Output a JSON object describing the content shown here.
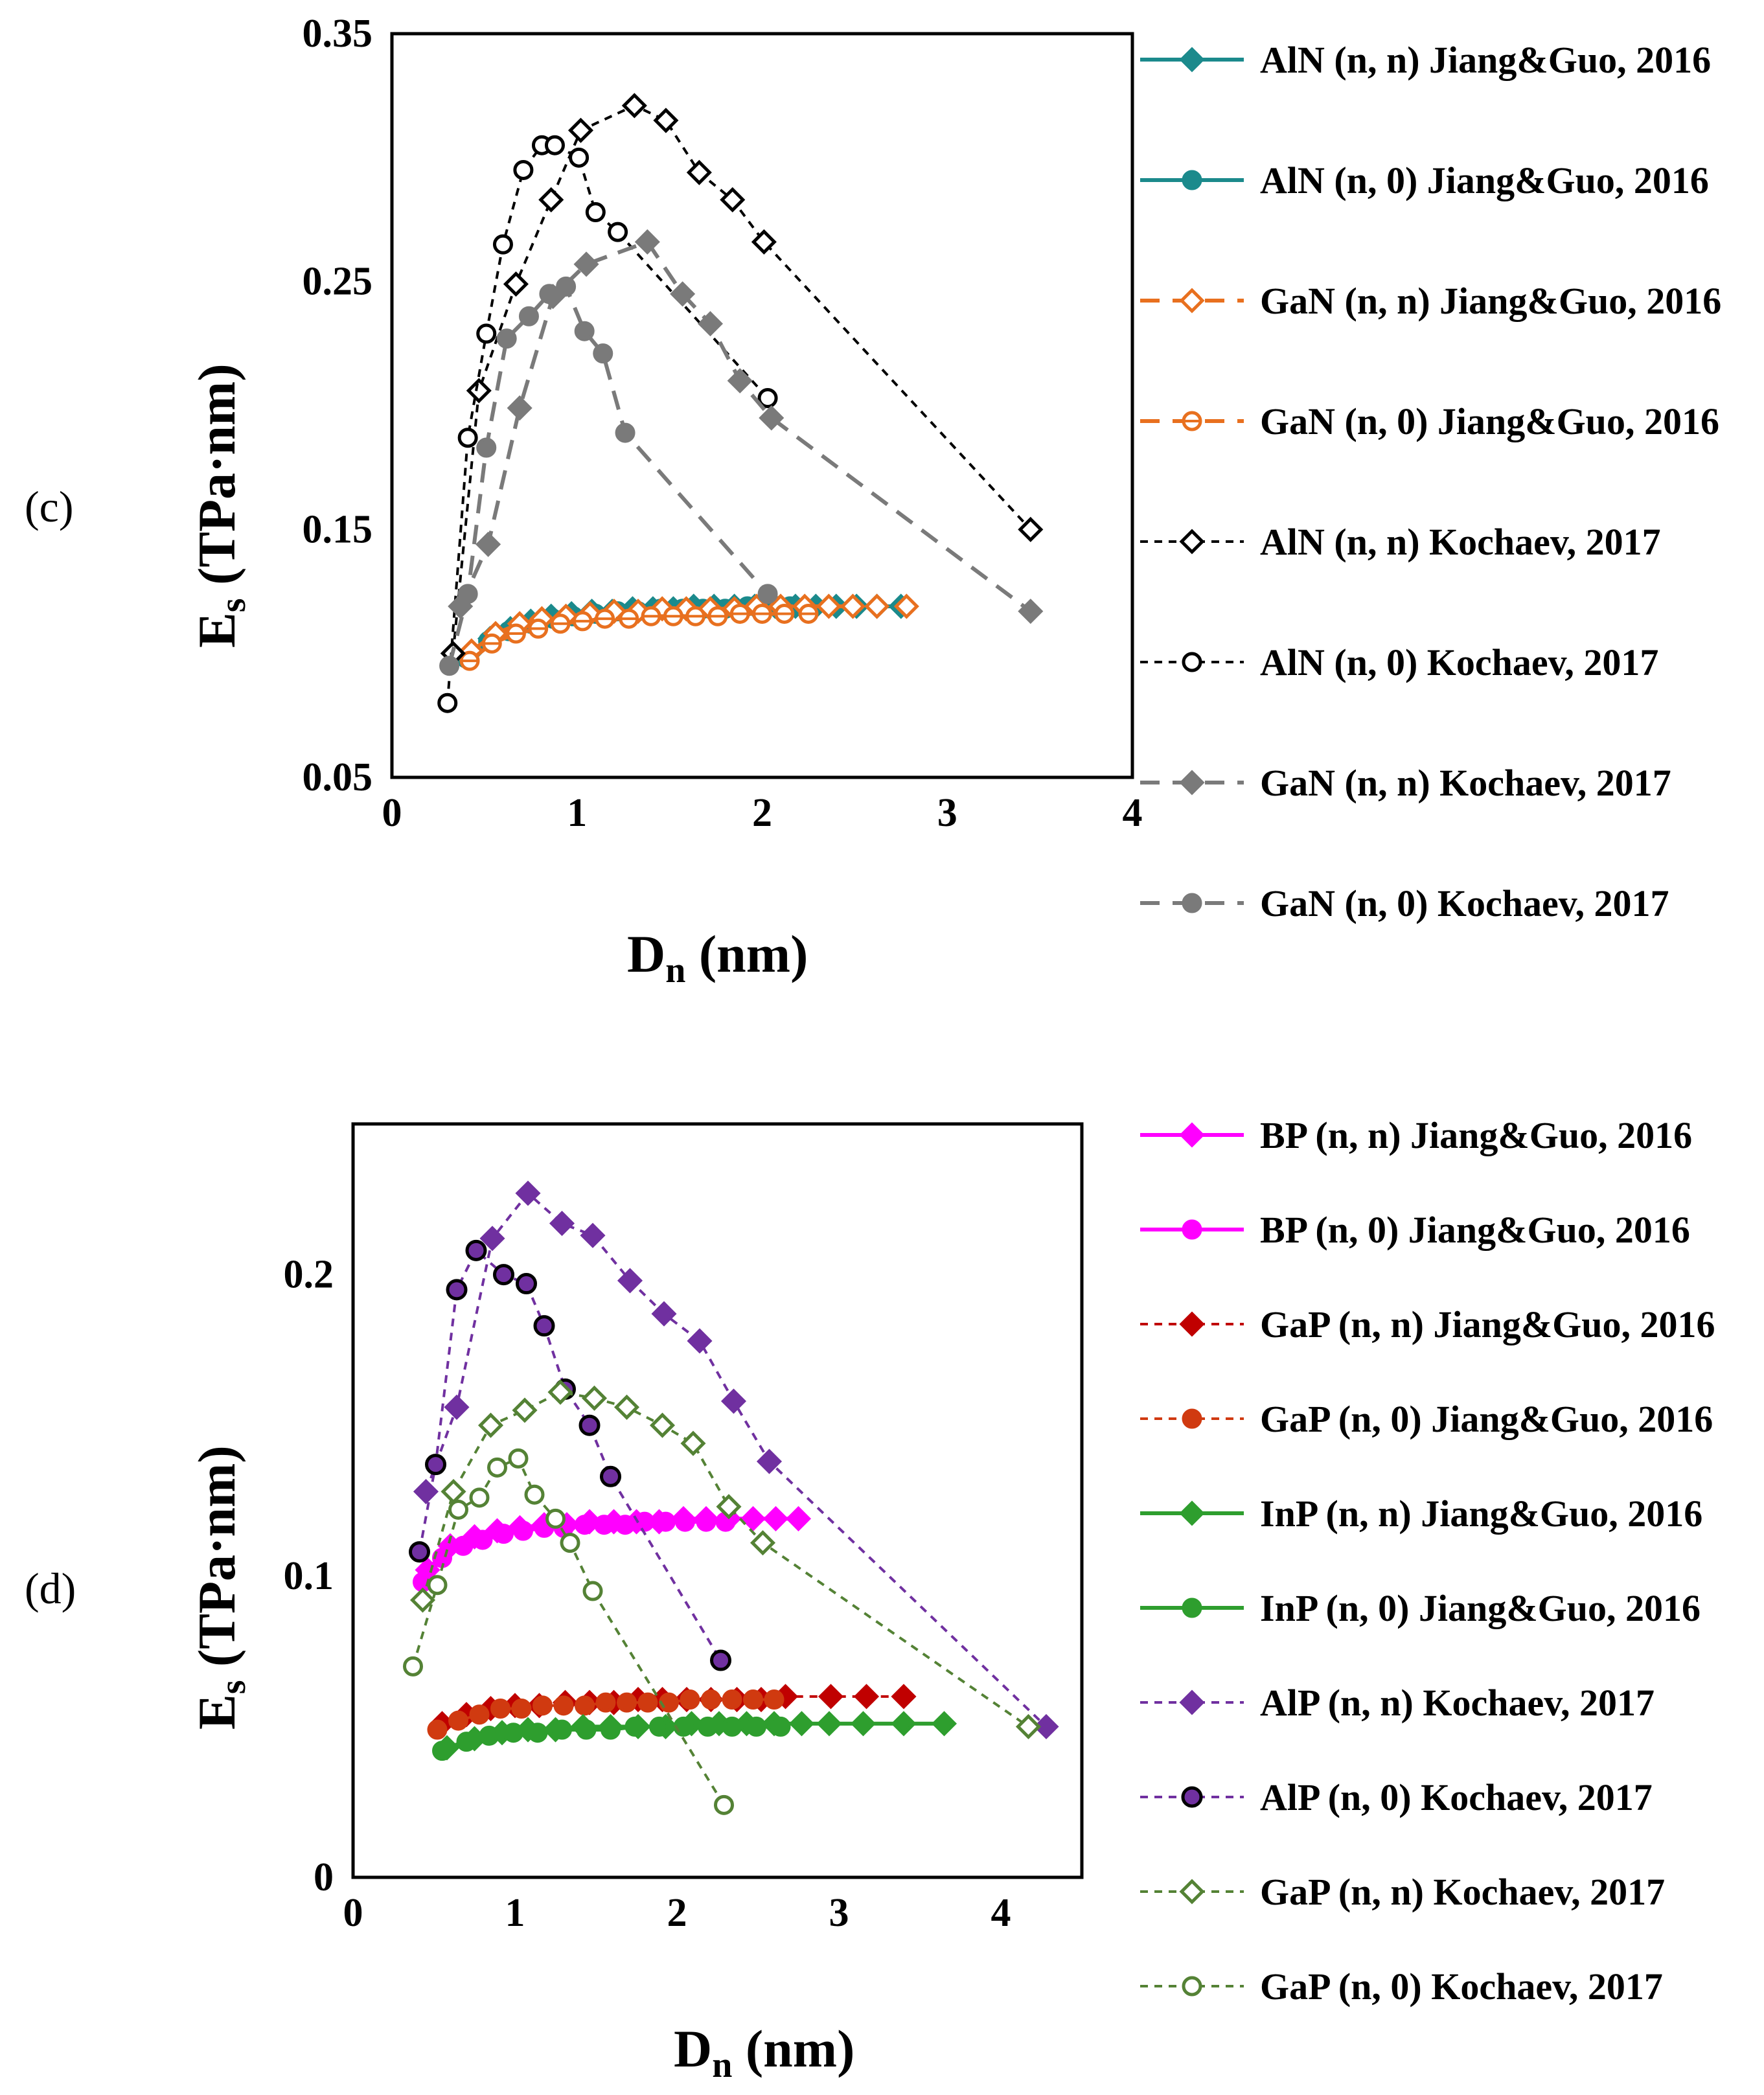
{
  "chart_data": [
    {
      "type": "scatter",
      "panel_label": "(c)",
      "xlabel_main": "D",
      "xlabel_sub": "n",
      "xlabel_unit": " (nm)",
      "ylabel_main": "E",
      "ylabel_sub": "s",
      "ylabel_unit": " (TPa·nm)",
      "xlim": [
        0,
        4
      ],
      "ylim": [
        0.05,
        0.35
      ],
      "x_ticks": [
        0,
        1,
        2,
        3,
        4
      ],
      "x_tick_labels": [
        "0",
        "1",
        "2",
        "3",
        "4"
      ],
      "y_ticks": [
        0.05,
        0.15,
        0.25,
        0.35
      ],
      "y_tick_labels": [
        "0.05",
        "0.15",
        "0.25",
        "0.35"
      ],
      "series": [
        {
          "name": "AlN (n, n) Jiang&Guo, 2016",
          "color": "#1b8a8c",
          "marker": "diamond",
          "filled": true,
          "line": "solid",
          "x": [
            0.42,
            0.53,
            0.64,
            0.75,
            0.86,
            0.97,
            1.08,
            1.19,
            1.3,
            1.41,
            1.52,
            1.63,
            1.74,
            1.85,
            1.96,
            2.07,
            2.18,
            2.29,
            2.4,
            2.51,
            2.62,
            2.75
          ],
          "y": [
            0.1,
            0.106,
            0.11,
            0.113,
            0.115,
            0.116,
            0.117,
            0.117,
            0.118,
            0.118,
            0.118,
            0.119,
            0.119,
            0.119,
            0.119,
            0.119,
            0.119,
            0.119,
            0.119,
            0.119,
            0.119,
            0.119
          ]
        },
        {
          "name": "AlN (n, 0) Jiang&Guo, 2016",
          "color": "#1b8a8c",
          "marker": "circle",
          "filled": true,
          "line": "solid",
          "x": [
            0.4,
            0.52,
            0.63,
            0.75,
            0.87,
            0.98,
            1.1,
            1.22,
            1.33,
            1.45,
            1.57,
            1.68,
            1.8,
            1.92,
            2.03,
            2.15
          ],
          "y": [
            0.098,
            0.105,
            0.109,
            0.112,
            0.114,
            0.115,
            0.116,
            0.117,
            0.117,
            0.118,
            0.118,
            0.118,
            0.118,
            0.119,
            0.119,
            0.119
          ]
        },
        {
          "name": "GaN (n, n) Jiang&Guo, 2016",
          "color": "#e8701f",
          "marker": "diamond",
          "filled": false,
          "line": "dashed",
          "x": [
            0.43,
            0.56,
            0.69,
            0.81,
            0.94,
            1.07,
            1.2,
            1.33,
            1.46,
            1.59,
            1.72,
            1.85,
            1.97,
            2.1,
            2.23,
            2.36,
            2.49,
            2.62,
            2.78
          ],
          "y": [
            0.101,
            0.108,
            0.112,
            0.114,
            0.115,
            0.116,
            0.117,
            0.117,
            0.118,
            0.118,
            0.118,
            0.118,
            0.119,
            0.119,
            0.119,
            0.119,
            0.119,
            0.119,
            0.119
          ]
        },
        {
          "name": "GaN (n, 0) Jiang&Guo, 2016",
          "color": "#e8701f",
          "marker": "circle-line",
          "filled": false,
          "line": "dashed",
          "x": [
            0.42,
            0.54,
            0.67,
            0.79,
            0.91,
            1.03,
            1.15,
            1.28,
            1.4,
            1.52,
            1.64,
            1.76,
            1.88,
            2.0,
            2.12,
            2.25
          ],
          "y": [
            0.097,
            0.104,
            0.108,
            0.11,
            0.112,
            0.113,
            0.114,
            0.114,
            0.115,
            0.115,
            0.115,
            0.115,
            0.116,
            0.116,
            0.116,
            0.116
          ]
        },
        {
          "name": "AlN (n, n) Kochaev, 2017",
          "color": "#000000",
          "marker": "diamond",
          "filled": false,
          "line": "dotted",
          "x": [
            0.33,
            0.47,
            0.67,
            0.86,
            1.02,
            1.31,
            1.48,
            1.66,
            1.84,
            2.01,
            3.45
          ],
          "y": [
            0.1,
            0.206,
            0.249,
            0.283,
            0.311,
            0.321,
            0.315,
            0.294,
            0.283,
            0.266,
            0.15
          ]
        },
        {
          "name": "AlN (n, 0) Kochaev, 2017",
          "color": "#000000",
          "marker": "circle",
          "filled": false,
          "line": "dotted",
          "x": [
            0.3,
            0.41,
            0.51,
            0.6,
            0.71,
            0.81,
            0.88,
            1.01,
            1.1,
            1.22,
            2.03
          ],
          "y": [
            0.08,
            0.187,
            0.229,
            0.265,
            0.295,
            0.305,
            0.305,
            0.3,
            0.278,
            0.27,
            0.203
          ]
        },
        {
          "name": "GaN (n, n) Kochaev, 2017",
          "color": "#7a7a7a",
          "marker": "diamond",
          "filled": true,
          "line": "dashed",
          "x": [
            0.37,
            0.52,
            0.69,
            0.87,
            1.05,
            1.38,
            1.57,
            1.72,
            1.88,
            2.05,
            3.45
          ],
          "y": [
            0.119,
            0.144,
            0.199,
            0.244,
            0.257,
            0.266,
            0.245,
            0.233,
            0.21,
            0.195,
            0.117
          ]
        },
        {
          "name": "GaN (n, 0) Kochaev, 2017",
          "color": "#7a7a7a",
          "marker": "circle",
          "filled": true,
          "line": "dashed",
          "x": [
            0.31,
            0.41,
            0.51,
            0.62,
            0.74,
            0.85,
            0.94,
            1.04,
            1.14,
            1.26,
            2.03
          ],
          "y": [
            0.095,
            0.124,
            0.183,
            0.227,
            0.236,
            0.245,
            0.248,
            0.23,
            0.221,
            0.189,
            0.124
          ]
        }
      ]
    },
    {
      "type": "scatter",
      "panel_label": "(d)",
      "xlabel_main": "D",
      "xlabel_sub": "n",
      "xlabel_unit": " (nm)",
      "ylabel_main": "E",
      "ylabel_sub": "s",
      "ylabel_unit": " (TPa·nm)",
      "xlim": [
        0,
        4.5
      ],
      "ylim": [
        0,
        0.25
      ],
      "x_ticks": [
        0,
        1,
        2,
        3,
        4
      ],
      "x_tick_labels": [
        "0",
        "1",
        "2",
        "3",
        "4"
      ],
      "y_ticks": [
        0,
        0.1,
        0.2
      ],
      "y_tick_labels": [
        "0",
        "0.1",
        "0.2"
      ],
      "series": [
        {
          "name": "BP (n, n) Jiang&Guo, 2016",
          "color": "#ff00ff",
          "marker": "diamond",
          "filled": true,
          "line": "solid",
          "x": [
            0.46,
            0.6,
            0.75,
            0.89,
            1.03,
            1.18,
            1.32,
            1.46,
            1.61,
            1.75,
            1.89,
            2.04,
            2.18,
            2.32,
            2.47,
            2.61,
            2.75
          ],
          "y": [
            0.102,
            0.11,
            0.113,
            0.115,
            0.116,
            0.117,
            0.117,
            0.118,
            0.118,
            0.118,
            0.118,
            0.119,
            0.119,
            0.119,
            0.119,
            0.119,
            0.119
          ]
        },
        {
          "name": "BP (n, 0) Jiang&Guo, 2016",
          "color": "#ff00ff",
          "marker": "circle",
          "filled": true,
          "line": "solid",
          "x": [
            0.43,
            0.55,
            0.68,
            0.8,
            0.93,
            1.05,
            1.18,
            1.3,
            1.43,
            1.55,
            1.68,
            1.8,
            1.93,
            2.05,
            2.18,
            2.3
          ],
          "y": [
            0.098,
            0.106,
            0.11,
            0.112,
            0.114,
            0.115,
            0.116,
            0.116,
            0.117,
            0.117,
            0.117,
            0.118,
            0.118,
            0.118,
            0.118,
            0.118
          ]
        },
        {
          "name": "GaP (n, n) Jiang&Guo, 2016",
          "color": "#c00000",
          "marker": "diamond",
          "filled": true,
          "line": "dotted",
          "x": [
            0.55,
            0.7,
            0.85,
            1.0,
            1.15,
            1.31,
            1.46,
            1.61,
            1.76,
            1.91,
            2.06,
            2.21,
            2.37,
            2.52,
            2.67,
            2.95,
            3.17,
            3.4
          ],
          "y": [
            0.051,
            0.054,
            0.056,
            0.057,
            0.057,
            0.058,
            0.058,
            0.058,
            0.059,
            0.059,
            0.059,
            0.059,
            0.059,
            0.059,
            0.06,
            0.06,
            0.06,
            0.06
          ]
        },
        {
          "name": "GaP (n, 0) Jiang&Guo, 2016",
          "color": "#d03a10",
          "marker": "circle",
          "filled": true,
          "line": "dotted",
          "x": [
            0.52,
            0.65,
            0.78,
            0.91,
            1.04,
            1.17,
            1.3,
            1.43,
            1.56,
            1.69,
            1.82,
            1.95,
            2.08,
            2.21,
            2.34,
            2.47,
            2.6
          ],
          "y": [
            0.049,
            0.052,
            0.054,
            0.056,
            0.056,
            0.057,
            0.057,
            0.057,
            0.058,
            0.058,
            0.058,
            0.058,
            0.059,
            0.059,
            0.059,
            0.059,
            0.059
          ]
        },
        {
          "name": "InP (n, n) Jiang&Guo, 2016",
          "color": "#2e9e2e",
          "marker": "diamond",
          "filled": true,
          "line": "solid",
          "x": [
            0.58,
            0.75,
            0.92,
            1.08,
            1.25,
            1.42,
            1.59,
            1.76,
            1.93,
            2.09,
            2.26,
            2.43,
            2.6,
            2.77,
            2.94,
            3.15,
            3.4,
            3.65
          ],
          "y": [
            0.043,
            0.046,
            0.048,
            0.049,
            0.049,
            0.05,
            0.05,
            0.05,
            0.05,
            0.051,
            0.051,
            0.051,
            0.051,
            0.051,
            0.051,
            0.051,
            0.051,
            0.051
          ]
        },
        {
          "name": "InP (n, 0) Jiang&Guo, 2016",
          "color": "#2e9e2e",
          "marker": "circle",
          "filled": true,
          "line": "solid",
          "x": [
            0.55,
            0.7,
            0.84,
            0.99,
            1.14,
            1.29,
            1.44,
            1.59,
            1.74,
            1.89,
            2.04,
            2.19,
            2.34,
            2.49,
            2.64
          ],
          "y": [
            0.042,
            0.045,
            0.047,
            0.048,
            0.048,
            0.049,
            0.049,
            0.049,
            0.05,
            0.05,
            0.05,
            0.05,
            0.05,
            0.05,
            0.05
          ]
        },
        {
          "name": "AlP (n, n) Kochaev, 2017",
          "color": "#7030a0",
          "marker": "diamond",
          "filled": true,
          "line": "dotted",
          "x": [
            0.45,
            0.64,
            0.86,
            1.08,
            1.29,
            1.48,
            1.71,
            1.92,
            2.14,
            2.35,
            2.57,
            4.28
          ],
          "y": [
            0.128,
            0.156,
            0.212,
            0.227,
            0.217,
            0.213,
            0.198,
            0.187,
            0.178,
            0.158,
            0.138,
            0.05
          ]
        },
        {
          "name": "AlP (n, 0) Kochaev, 2017",
          "color": "#7030a0",
          "marker": "circle-ring",
          "filled": true,
          "line": "dotted",
          "x": [
            0.41,
            0.51,
            0.64,
            0.76,
            0.93,
            1.07,
            1.18,
            1.31,
            1.46,
            1.59,
            2.27
          ],
          "y": [
            0.108,
            0.137,
            0.195,
            0.208,
            0.2,
            0.197,
            0.183,
            0.162,
            0.15,
            0.133,
            0.072
          ]
        },
        {
          "name": "GaP (n, n) Kochaev, 2017",
          "color": "#548235",
          "marker": "diamond",
          "filled": false,
          "line": "dotted",
          "x": [
            0.43,
            0.62,
            0.85,
            1.06,
            1.28,
            1.49,
            1.69,
            1.91,
            2.1,
            2.32,
            2.53,
            4.17
          ],
          "y": [
            0.092,
            0.128,
            0.15,
            0.155,
            0.161,
            0.159,
            0.156,
            0.15,
            0.144,
            0.123,
            0.111,
            0.05
          ]
        },
        {
          "name": "GaP (n, 0) Kochaev, 2017",
          "color": "#548235",
          "marker": "circle",
          "filled": false,
          "line": "dotted",
          "x": [
            0.37,
            0.52,
            0.65,
            0.78,
            0.89,
            1.02,
            1.12,
            1.25,
            1.34,
            1.48,
            2.29
          ],
          "y": [
            0.07,
            0.097,
            0.122,
            0.126,
            0.136,
            0.139,
            0.127,
            0.119,
            0.111,
            0.095,
            0.024
          ]
        }
      ]
    }
  ]
}
